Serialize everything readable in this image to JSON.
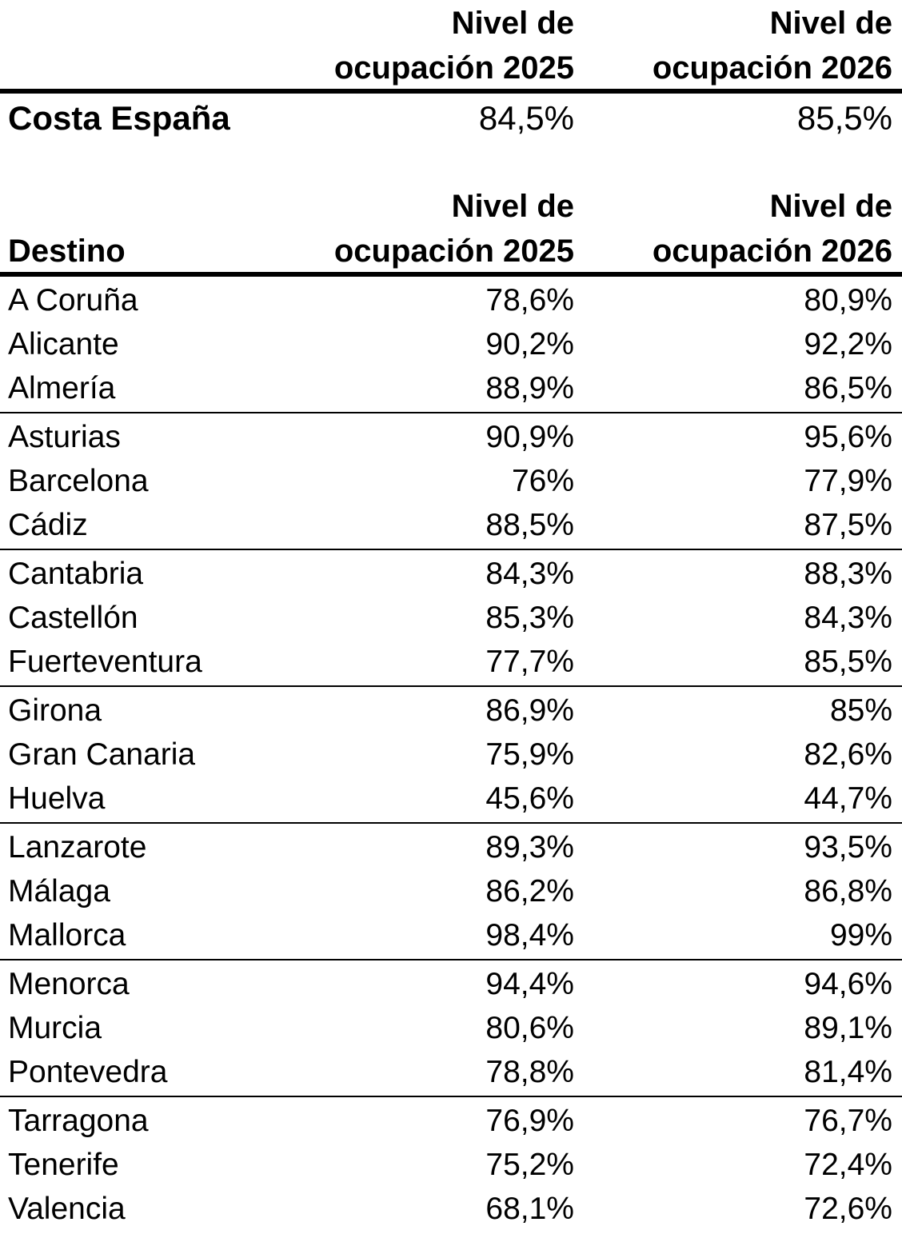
{
  "header": {
    "col_2025_line1": "Nivel de",
    "col_2025_line2": "ocupación 2025",
    "col_2026_line1": "Nivel de",
    "col_2026_line2": "ocupación 2026"
  },
  "summary": {
    "label": "Costa España",
    "v2025": "84,5%",
    "v2026": "85,5%"
  },
  "table": {
    "destino_label": "Destino",
    "col_2025_line1": "Nivel de",
    "col_2025_line2": "ocupación 2025",
    "col_2026_line1": "Nivel de",
    "col_2026_line2": "ocupación 2026",
    "groups": [
      [
        {
          "name": "A Coruña",
          "v2025": "78,6%",
          "v2026": "80,9%"
        },
        {
          "name": "Alicante",
          "v2025": "90,2%",
          "v2026": "92,2%"
        },
        {
          "name": "Almería",
          "v2025": "88,9%",
          "v2026": "86,5%"
        }
      ],
      [
        {
          "name": "Asturias",
          "v2025": "90,9%",
          "v2026": "95,6%"
        },
        {
          "name": "Barcelona",
          "v2025": "76%",
          "v2026": "77,9%"
        },
        {
          "name": "Cádiz",
          "v2025": "88,5%",
          "v2026": "87,5%"
        }
      ],
      [
        {
          "name": "Cantabria",
          "v2025": "84,3%",
          "v2026": "88,3%"
        },
        {
          "name": "Castellón",
          "v2025": "85,3%",
          "v2026": "84,3%"
        },
        {
          "name": "Fuerteventura",
          "v2025": "77,7%",
          "v2026": "85,5%"
        }
      ],
      [
        {
          "name": "Girona",
          "v2025": "86,9%",
          "v2026": "85%"
        },
        {
          "name": "Gran Canaria",
          "v2025": "75,9%",
          "v2026": "82,6%"
        },
        {
          "name": "Huelva",
          "v2025": "45,6%",
          "v2026": "44,7%"
        }
      ],
      [
        {
          "name": "Lanzarote",
          "v2025": "89,3%",
          "v2026": "93,5%"
        },
        {
          "name": "Málaga",
          "v2025": "86,2%",
          "v2026": "86,8%"
        },
        {
          "name": "Mallorca",
          "v2025": "98,4%",
          "v2026": "99%"
        }
      ],
      [
        {
          "name": "Menorca",
          "v2025": "94,4%",
          "v2026": "94,6%"
        },
        {
          "name": "Murcia",
          "v2025": "80,6%",
          "v2026": "89,1%"
        },
        {
          "name": "Pontevedra",
          "v2025": "78,8%",
          "v2026": "81,4%"
        }
      ],
      [
        {
          "name": "Tarragona",
          "v2025": "76,9%",
          "v2026": "76,7%"
        },
        {
          "name": "Tenerife",
          "v2025": "75,2%",
          "v2026": "72,4%"
        },
        {
          "name": "Valencia",
          "v2025": "68,1%",
          "v2026": "72,6%"
        }
      ]
    ]
  }
}
